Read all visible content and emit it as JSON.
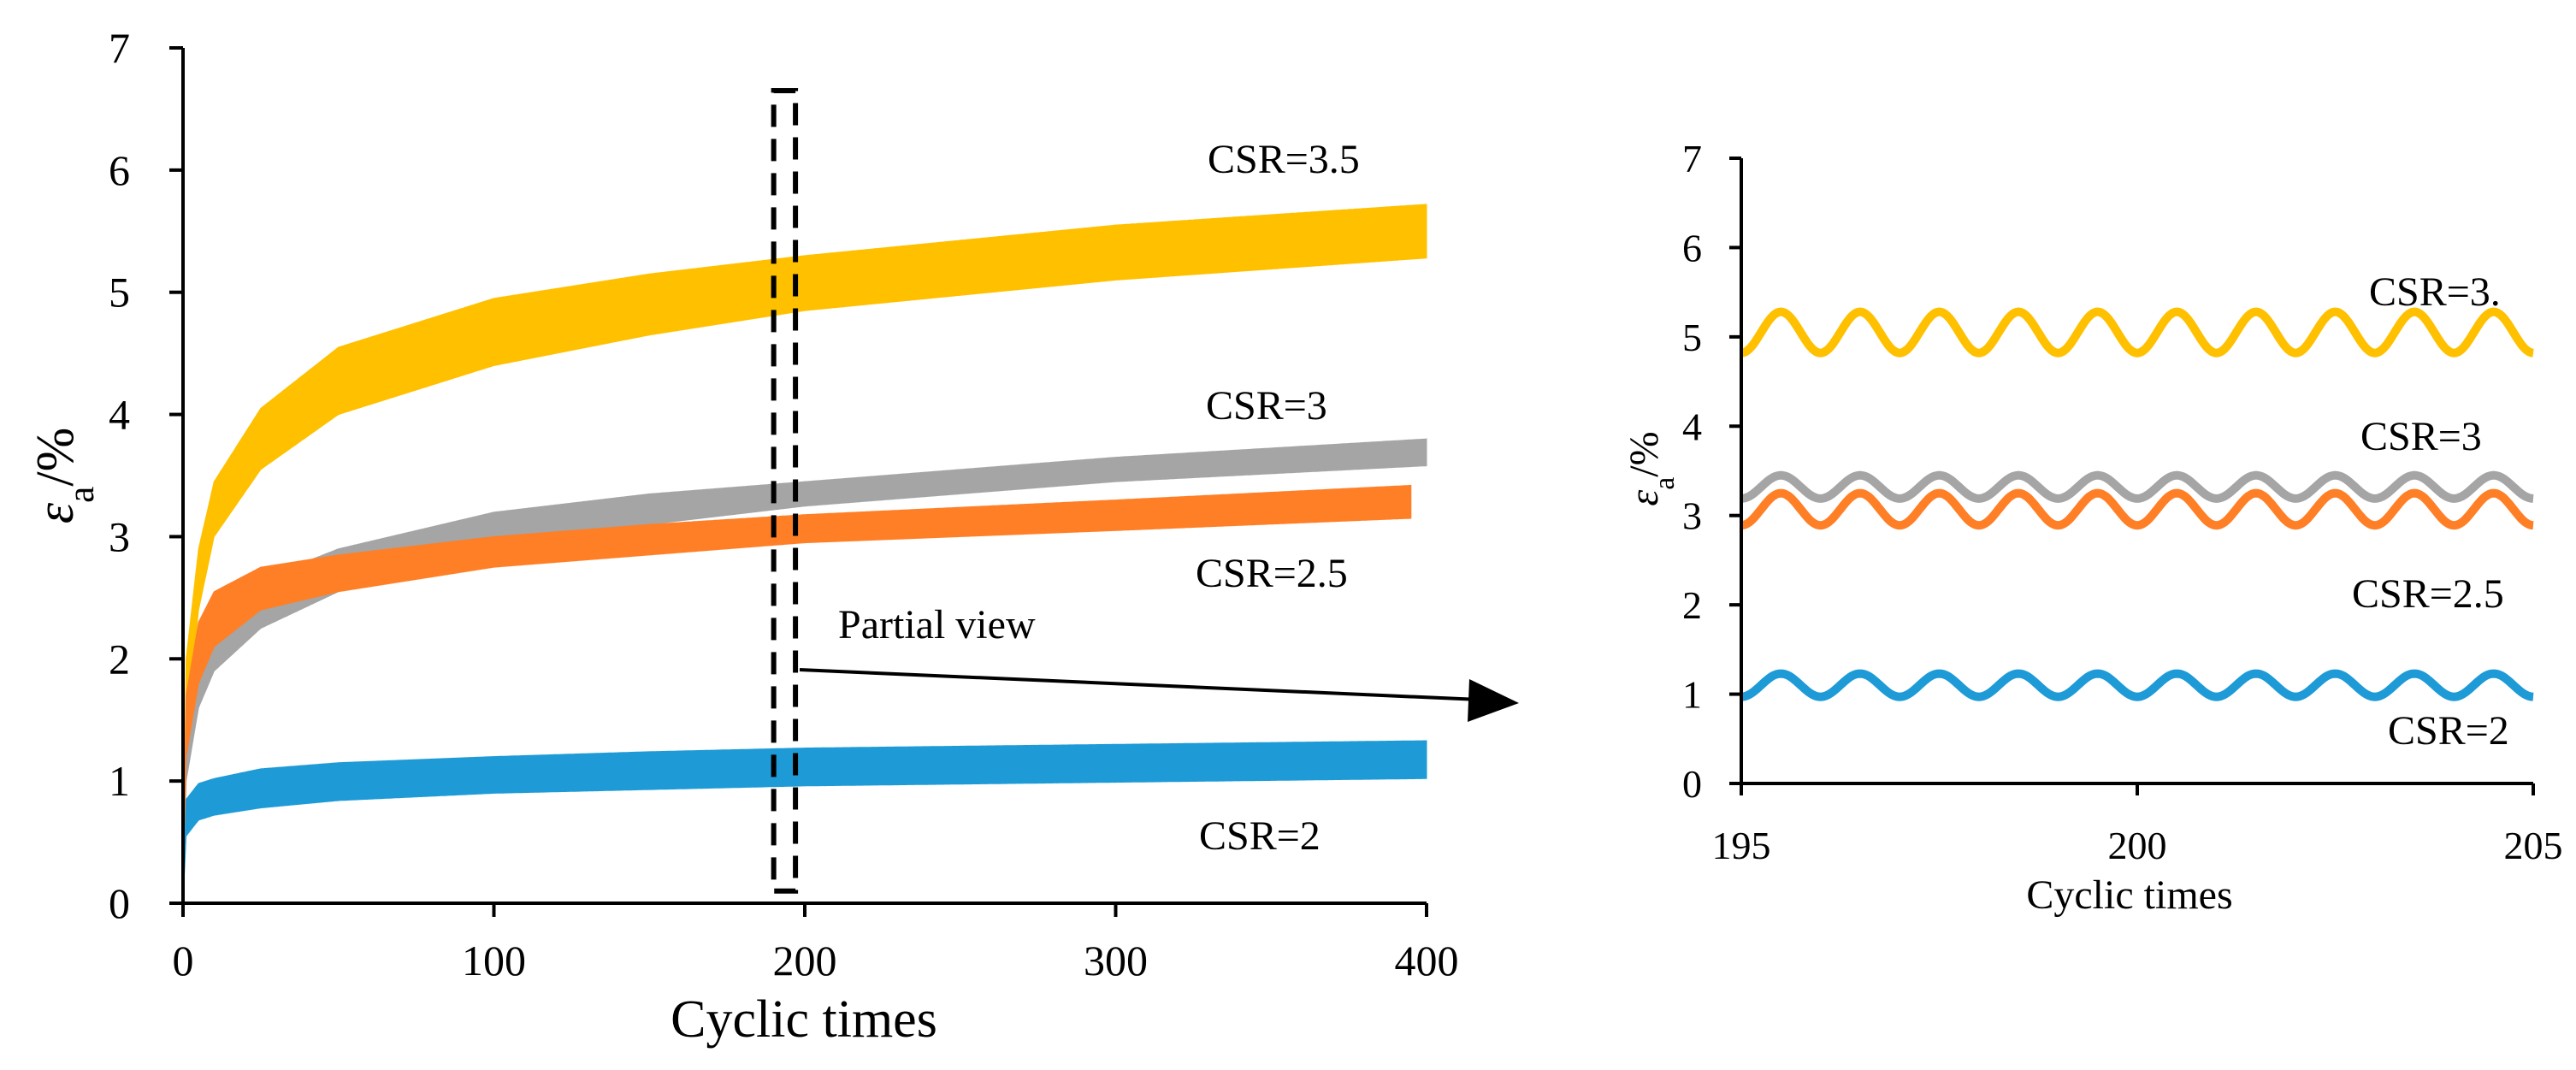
{
  "chart_data": [
    {
      "id": "main",
      "type": "area",
      "title": "",
      "xlabel": "Cyclic times",
      "ylabel_base": "ε",
      "ylabel_sub": "a",
      "ylabel_suffix": "/%",
      "xlim": [
        0,
        400
      ],
      "ylim": [
        0,
        7
      ],
      "xticks": [
        0,
        100,
        200,
        300,
        400
      ],
      "yticks": [
        0,
        1,
        2,
        3,
        4,
        5,
        6,
        7
      ],
      "grid": false,
      "series": [
        {
          "name": "CSR=3.5",
          "color": "#FFC000",
          "x_end": 400,
          "x": [
            0,
            1,
            5,
            10,
            25,
            50,
            100,
            150,
            200,
            300,
            400
          ],
          "lower": [
            0,
            1.4,
            2.4,
            3.0,
            3.55,
            4.0,
            4.4,
            4.65,
            4.85,
            5.1,
            5.28
          ],
          "upper": [
            0,
            2.0,
            2.9,
            3.45,
            4.05,
            4.55,
            4.95,
            5.15,
            5.3,
            5.55,
            5.72
          ]
        },
        {
          "name": "CSR=3",
          "color": "#A5A5A5",
          "x_end": 400,
          "x": [
            0,
            1,
            5,
            10,
            25,
            50,
            100,
            150,
            200,
            300,
            400
          ],
          "lower": [
            0,
            1.0,
            1.6,
            1.9,
            2.25,
            2.55,
            2.9,
            3.1,
            3.25,
            3.45,
            3.58
          ],
          "upper": [
            0,
            1.5,
            2.0,
            2.3,
            2.65,
            2.9,
            3.2,
            3.35,
            3.45,
            3.65,
            3.8
          ]
        },
        {
          "name": "CSR=2.5",
          "color": "#FF7F27",
          "x_end": 395,
          "x": [
            0,
            1,
            5,
            10,
            25,
            50,
            100,
            150,
            200,
            300,
            395
          ],
          "lower": [
            0,
            1.2,
            1.8,
            2.1,
            2.4,
            2.55,
            2.75,
            2.85,
            2.95,
            3.05,
            3.15
          ],
          "upper": [
            0,
            1.7,
            2.3,
            2.55,
            2.75,
            2.85,
            3.0,
            3.1,
            3.18,
            3.3,
            3.42
          ]
        },
        {
          "name": "CSR=2",
          "color": "#1E9BD7",
          "x_end": 400,
          "x": [
            0,
            1,
            5,
            10,
            25,
            50,
            100,
            150,
            200,
            300,
            400
          ],
          "lower": [
            0,
            0.55,
            0.68,
            0.72,
            0.78,
            0.84,
            0.9,
            0.93,
            0.96,
            0.99,
            1.02
          ],
          "upper": [
            0,
            0.85,
            0.98,
            1.02,
            1.1,
            1.15,
            1.2,
            1.24,
            1.27,
            1.3,
            1.33
          ]
        }
      ],
      "annotations": {
        "partial_view_label": "Partial view",
        "box_x_range": [
          190,
          197
        ],
        "box_y_range": [
          0.1,
          6.65
        ]
      }
    },
    {
      "id": "inset",
      "type": "line",
      "title": "",
      "xlabel": "Cyclic times",
      "ylabel_base": "ε",
      "ylabel_sub": "a",
      "ylabel_suffix": "/%",
      "xlim": [
        195,
        205
      ],
      "ylim": [
        0,
        7
      ],
      "xticks": [
        195,
        200,
        205
      ],
      "yticks": [
        0,
        1,
        2,
        3,
        4,
        5,
        6,
        7
      ],
      "grid": false,
      "series": [
        {
          "name": "CSR=3.",
          "color": "#FFC000",
          "base": 5.05,
          "amplitude": 0.23,
          "cycles": 10
        },
        {
          "name": "CSR=3",
          "color": "#A5A5A5",
          "base": 3.32,
          "amplitude": 0.13,
          "cycles": 10
        },
        {
          "name": "CSR=2.5",
          "color": "#FF7F27",
          "base": 3.07,
          "amplitude": 0.18,
          "cycles": 10
        },
        {
          "name": "CSR=2",
          "color": "#1E9BD7",
          "base": 1.1,
          "amplitude": 0.13,
          "cycles": 10
        }
      ]
    }
  ]
}
